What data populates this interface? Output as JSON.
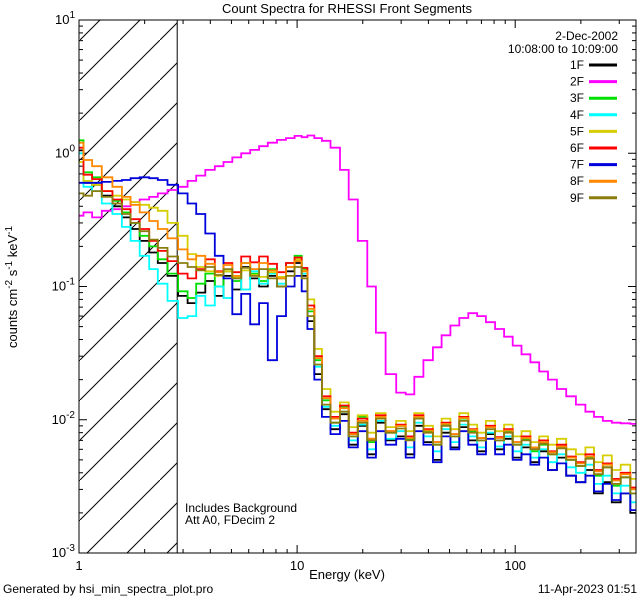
{
  "title": "Count Spectra for RHESSI Front Segments",
  "header": {
    "date_line": "2-Dec-2002",
    "time_line": "10:08:00 to 10:09:00"
  },
  "annotation": {
    "line1": "Includes Background",
    "line2": "Att A0, FDecim 2"
  },
  "footer": {
    "left": "Generated by hsi_min_spectra_plot.pro",
    "right": "11-Apr-2023 01:51"
  },
  "chart_data": {
    "type": "line",
    "subtype": "histogram-step-log-log-spectra",
    "title": "Count Spectra for RHESSI Front Segments",
    "xlabel": "Energy (keV)",
    "ylabel": "counts cm-2 s-1 keV-1",
    "ylabel_parts": [
      {
        "t": "counts cm"
      },
      {
        "s": "-2"
      },
      {
        "t": " s"
      },
      {
        "s": "-1"
      },
      {
        "t": " keV"
      },
      {
        "s": "-1"
      }
    ],
    "xscale": "log",
    "yscale": "log",
    "xlim": [
      1,
      358
    ],
    "ylim": [
      0.001,
      10
    ],
    "x_major_ticks": [
      1,
      10,
      100
    ],
    "x_minor_ticks": [
      2,
      3,
      4,
      5,
      6,
      7,
      8,
      9,
      20,
      30,
      40,
      50,
      60,
      70,
      80,
      90,
      200,
      300
    ],
    "y_major_ticks_exp": [
      1,
      0,
      -1,
      -2,
      -3
    ],
    "grid": "off",
    "legend_position": "top-right-inside",
    "background": "#ffffff",
    "axes_color": "#000000",
    "hatch_region": {
      "xmin": 1,
      "xmax": 2.82
    },
    "energies": [
      1.0,
      1.1,
      1.2,
      1.35,
      1.5,
      1.65,
      1.8,
      2.0,
      2.2,
      2.4,
      2.7,
      3.0,
      3.3,
      3.6,
      4.0,
      4.4,
      4.8,
      5.3,
      5.8,
      6.4,
      7.0,
      7.7,
      8.5,
      9.3,
      10.2,
      10.8,
      11.5,
      12.5,
      13.5,
      15,
      16.5,
      18,
      20,
      22,
      24,
      27,
      30,
      33,
      36,
      40,
      44,
      48,
      53,
      58,
      64,
      70,
      77,
      85,
      93,
      102,
      112,
      123,
      135,
      148,
      163,
      180,
      200,
      220,
      240,
      265,
      290,
      320,
      355
    ],
    "series": [
      {
        "name": "1F",
        "color": "#000000",
        "values": [
          1.05,
          0.6,
          0.58,
          0.48,
          0.4,
          0.33,
          0.27,
          0.22,
          0.18,
          0.15,
          0.12,
          0.085,
          0.075,
          0.09,
          0.11,
          0.085,
          0.12,
          0.095,
          0.14,
          0.115,
          0.1,
          0.12,
          0.1,
          0.13,
          0.15,
          0.12,
          0.055,
          0.022,
          0.012,
          0.0085,
          0.011,
          0.0065,
          0.009,
          0.0055,
          0.0095,
          0.007,
          0.0075,
          0.0055,
          0.009,
          0.0068,
          0.005,
          0.008,
          0.0062,
          0.0088,
          0.007,
          0.0058,
          0.0078,
          0.006,
          0.0072,
          0.0052,
          0.0062,
          0.0048,
          0.0058,
          0.0042,
          0.0052,
          0.0038,
          0.0034,
          0.0042,
          0.0028,
          0.0034,
          0.0024,
          0.0028,
          0.002
        ]
      },
      {
        "name": "2F",
        "color": "#ff00ff",
        "values": [
          0.34,
          0.36,
          0.33,
          0.37,
          0.38,
          0.4,
          0.43,
          0.45,
          0.47,
          0.5,
          0.53,
          0.56,
          0.62,
          0.68,
          0.75,
          0.8,
          0.86,
          0.93,
          1.0,
          1.06,
          1.13,
          1.2,
          1.26,
          1.3,
          1.35,
          1.32,
          1.36,
          1.3,
          1.24,
          1.1,
          0.75,
          0.45,
          0.22,
          0.1,
          0.045,
          0.022,
          0.016,
          0.0155,
          0.021,
          0.028,
          0.035,
          0.043,
          0.051,
          0.058,
          0.063,
          0.06,
          0.054,
          0.048,
          0.042,
          0.036,
          0.031,
          0.027,
          0.023,
          0.02,
          0.017,
          0.015,
          0.013,
          0.0115,
          0.0105,
          0.0098,
          0.0095,
          0.0094,
          0.0093
        ]
      },
      {
        "name": "3F",
        "color": "#00e000",
        "values": [
          1.25,
          0.72,
          0.66,
          0.52,
          0.44,
          0.36,
          0.3,
          0.24,
          0.2,
          0.16,
          0.125,
          0.092,
          0.082,
          0.105,
          0.125,
          0.1,
          0.13,
          0.11,
          0.15,
          0.125,
          0.11,
          0.135,
          0.115,
          0.15,
          0.17,
          0.135,
          0.065,
          0.028,
          0.014,
          0.0095,
          0.0125,
          0.0075,
          0.0105,
          0.0068,
          0.0105,
          0.008,
          0.009,
          0.0072,
          0.0105,
          0.0082,
          0.0065,
          0.0092,
          0.0075,
          0.0102,
          0.0082,
          0.007,
          0.0088,
          0.007,
          0.0082,
          0.0065,
          0.0072,
          0.0058,
          0.0065,
          0.0055,
          0.0062,
          0.005,
          0.0045,
          0.0052,
          0.0038,
          0.0044,
          0.0032,
          0.0037,
          0.0028
        ]
      },
      {
        "name": "4F",
        "color": "#00ffff",
        "values": [
          1.0,
          0.56,
          0.52,
          0.42,
          0.35,
          0.28,
          0.22,
          0.17,
          0.135,
          0.105,
          0.078,
          0.058,
          0.06,
          0.085,
          0.072,
          0.1,
          0.082,
          0.115,
          0.095,
          0.13,
          0.105,
          0.125,
          0.105,
          0.14,
          0.16,
          0.125,
          0.06,
          0.025,
          0.0125,
          0.009,
          0.0115,
          0.007,
          0.0092,
          0.006,
          0.0098,
          0.0072,
          0.0082,
          0.0062,
          0.0095,
          0.0075,
          0.0058,
          0.0085,
          0.0068,
          0.0092,
          0.0075,
          0.0062,
          0.008,
          0.0063,
          0.0075,
          0.0058,
          0.0065,
          0.0052,
          0.006,
          0.0048,
          0.0055,
          0.0044,
          0.004,
          0.0046,
          0.0033,
          0.0038,
          0.0028,
          0.0032,
          0.0024
        ]
      },
      {
        "name": "5F",
        "color": "#d6ce00",
        "values": [
          0.86,
          0.62,
          0.58,
          0.52,
          0.48,
          0.45,
          0.43,
          0.41,
          0.39,
          0.37,
          0.3,
          0.24,
          0.175,
          0.14,
          0.13,
          0.12,
          0.13,
          0.118,
          0.132,
          0.122,
          0.118,
          0.128,
          0.118,
          0.14,
          0.16,
          0.132,
          0.08,
          0.034,
          0.017,
          0.0115,
          0.0135,
          0.0088,
          0.0108,
          0.008,
          0.0112,
          0.0088,
          0.0098,
          0.0082,
          0.0112,
          0.009,
          0.0075,
          0.0102,
          0.0085,
          0.0112,
          0.0092,
          0.008,
          0.0098,
          0.0082,
          0.0092,
          0.0075,
          0.0082,
          0.0068,
          0.0075,
          0.0065,
          0.0072,
          0.006,
          0.0055,
          0.0062,
          0.0048,
          0.0054,
          0.0042,
          0.0046,
          0.0036
        ]
      },
      {
        "name": "6F",
        "color": "#ff0000",
        "values": [
          1.1,
          0.69,
          0.64,
          0.52,
          0.45,
          0.38,
          0.32,
          0.27,
          0.22,
          0.185,
          0.155,
          0.125,
          0.115,
          0.135,
          0.16,
          0.13,
          0.15,
          0.128,
          0.168,
          0.152,
          0.168,
          0.148,
          0.128,
          0.15,
          0.165,
          0.138,
          0.072,
          0.03,
          0.015,
          0.0105,
          0.0128,
          0.008,
          0.0102,
          0.0072,
          0.0108,
          0.0082,
          0.0092,
          0.0075,
          0.0108,
          0.0085,
          0.0068,
          0.0095,
          0.0078,
          0.0105,
          0.0085,
          0.0073,
          0.009,
          0.0074,
          0.0085,
          0.0068,
          0.0075,
          0.0062,
          0.007,
          0.0058,
          0.0065,
          0.0053,
          0.0048,
          0.0055,
          0.0042,
          0.0047,
          0.0036,
          0.004,
          0.0031
        ]
      },
      {
        "name": "7F",
        "color": "#0000dd",
        "values": [
          0.6,
          0.6,
          0.6,
          0.61,
          0.62,
          0.63,
          0.65,
          0.66,
          0.65,
          0.63,
          0.58,
          0.5,
          0.42,
          0.35,
          0.25,
          0.17,
          0.115,
          0.062,
          0.088,
          0.052,
          0.075,
          0.028,
          0.06,
          0.1,
          0.12,
          0.092,
          0.048,
          0.02,
          0.0105,
          0.0078,
          0.0098,
          0.0062,
          0.0082,
          0.0052,
          0.0082,
          0.0065,
          0.0072,
          0.0052,
          0.0082,
          0.0065,
          0.0048,
          0.0075,
          0.006,
          0.0082,
          0.0065,
          0.0055,
          0.0072,
          0.0055,
          0.0065,
          0.005,
          0.0055,
          0.0046,
          0.0052,
          0.0042,
          0.0047,
          0.0038,
          0.0034,
          0.0038,
          0.0029,
          0.0033,
          0.0025,
          0.0028,
          0.0021
        ]
      },
      {
        "name": "8F",
        "color": "#ff8800",
        "values": [
          1.2,
          0.89,
          0.8,
          0.66,
          0.56,
          0.47,
          0.41,
          0.36,
          0.31,
          0.27,
          0.23,
          0.19,
          0.16,
          0.17,
          0.148,
          0.128,
          0.145,
          0.12,
          0.15,
          0.135,
          0.15,
          0.132,
          0.115,
          0.14,
          0.155,
          0.13,
          0.068,
          0.029,
          0.0145,
          0.0102,
          0.0122,
          0.0078,
          0.0098,
          0.0072,
          0.0105,
          0.0082,
          0.009,
          0.0073,
          0.0105,
          0.0083,
          0.0068,
          0.0093,
          0.0078,
          0.0103,
          0.0084,
          0.0073,
          0.0088,
          0.0073,
          0.0083,
          0.0068,
          0.0073,
          0.0062,
          0.0068,
          0.0057,
          0.0063,
          0.0052,
          0.0047,
          0.0053,
          0.0041,
          0.0046,
          0.0035,
          0.0039,
          0.003
        ]
      },
      {
        "name": "9F",
        "color": "#8a7d0e",
        "values": [
          0.5,
          0.48,
          0.52,
          0.47,
          0.42,
          0.35,
          0.3,
          0.26,
          0.225,
          0.195,
          0.168,
          0.15,
          0.14,
          0.132,
          0.14,
          0.122,
          0.135,
          0.115,
          0.138,
          0.12,
          0.135,
          0.115,
          0.1,
          0.12,
          0.14,
          0.115,
          0.06,
          0.026,
          0.013,
          0.0095,
          0.0115,
          0.0075,
          0.0095,
          0.007,
          0.0102,
          0.008,
          0.0086,
          0.007,
          0.0102,
          0.008,
          0.0065,
          0.009,
          0.0075,
          0.0098,
          0.008,
          0.007,
          0.0085,
          0.007,
          0.008,
          0.0065,
          0.007,
          0.006,
          0.0066,
          0.0055,
          0.0061,
          0.005,
          0.0045,
          0.0051,
          0.0039,
          0.0044,
          0.0033,
          0.0037,
          0.0028
        ]
      }
    ]
  }
}
